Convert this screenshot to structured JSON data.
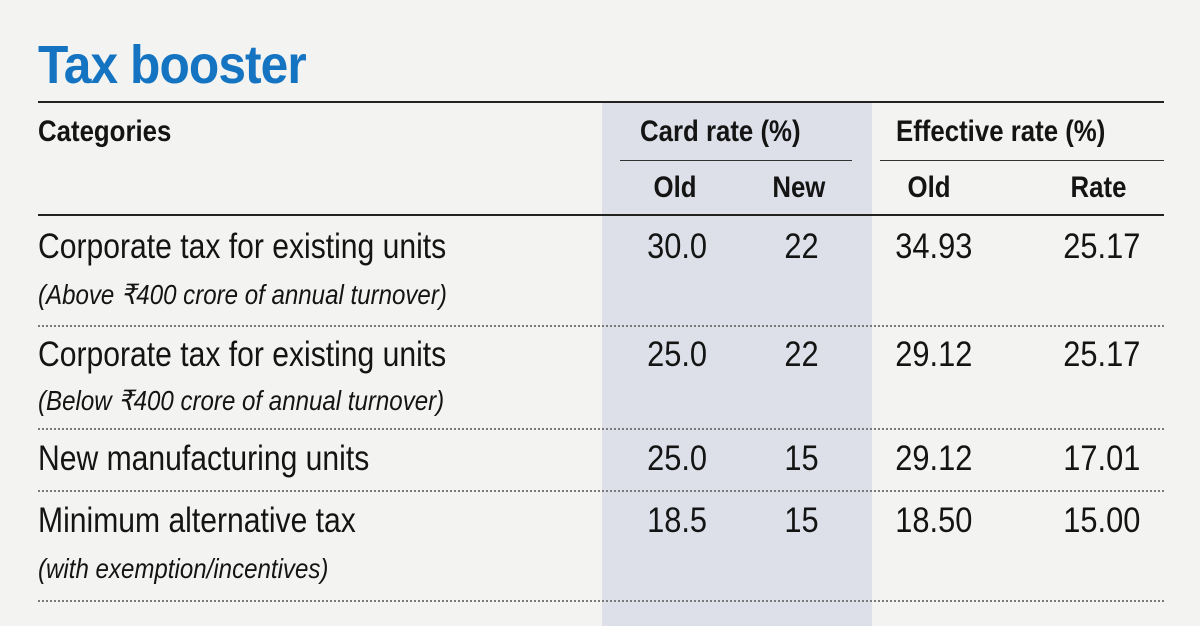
{
  "chart_data": {
    "type": "table",
    "title": "Tax booster",
    "headers": {
      "category": "Categories",
      "groups": [
        {
          "label": "Card rate (%)",
          "columns": [
            "Old",
            "New"
          ]
        },
        {
          "label": "Effective rate (%)",
          "columns": [
            "Old",
            "Rate"
          ]
        }
      ]
    },
    "rows": [
      {
        "category": "Corporate tax for existing units",
        "note": "(Above ₹400 crore of annual turnover)",
        "values": [
          "30.0",
          "22",
          "34.93",
          "25.17"
        ]
      },
      {
        "category": "Corporate tax for existing units",
        "note": "(Below ₹400 crore of annual turnover)",
        "values": [
          "25.0",
          "22",
          "29.12",
          "25.17"
        ]
      },
      {
        "category": "New manufacturing units",
        "note": "",
        "values": [
          "25.0",
          "15",
          "29.12",
          "17.01"
        ]
      },
      {
        "category": "Minimum alternative tax",
        "note": "(with exemption/incentives)",
        "values": [
          "18.5",
          "15",
          "18.50",
          "15.00"
        ]
      }
    ],
    "colors": {
      "title": "#1474c2",
      "shade": "#dde0e8"
    }
  }
}
